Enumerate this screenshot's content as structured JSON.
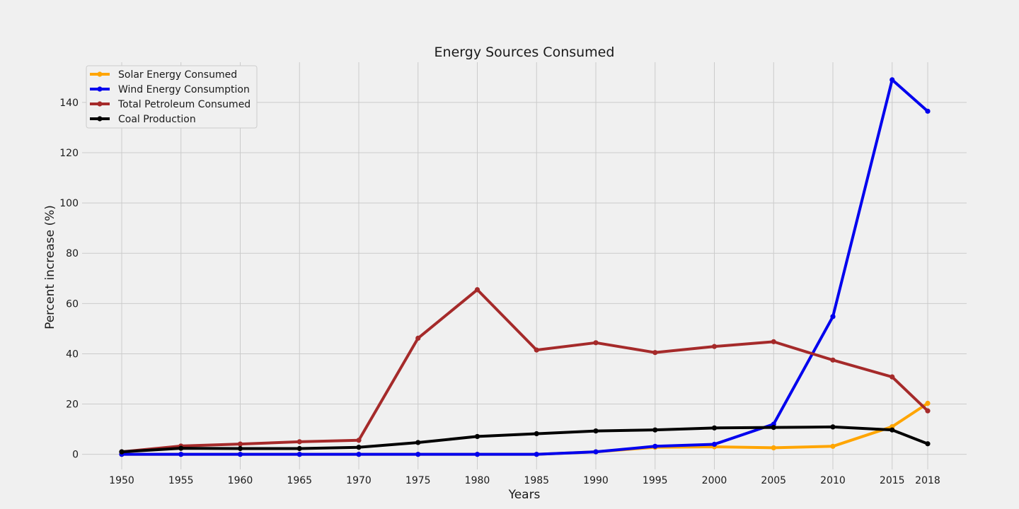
{
  "chart_data": {
    "type": "line",
    "title": "Energy Sources Consumed",
    "xlabel": "Years",
    "ylabel": "Percent increase (%)",
    "categories": [
      "1950",
      "1955",
      "1960",
      "1965",
      "1970",
      "1975",
      "1980",
      "1985",
      "1990",
      "1995",
      "2000",
      "2005",
      "2010",
      "2015",
      "2018"
    ],
    "y_ticks": [
      "0",
      "20",
      "40",
      "60",
      "80",
      "100",
      "120",
      "140"
    ],
    "ylim": [
      -6,
      156
    ],
    "grid": true,
    "legend_position": "top-left",
    "series": [
      {
        "name": "Solar Energy Consumed",
        "color": "#ffa500",
        "values": [
          0,
          0,
          0,
          0,
          0,
          0,
          0,
          0,
          1.0,
          2.8,
          3.0,
          2.6,
          3.2,
          11.0,
          20.3
        ]
      },
      {
        "name": "Wind Energy Consumption",
        "color": "#0000ee",
        "values": [
          0,
          0,
          0,
          0,
          0,
          0,
          0,
          0,
          1.0,
          3.2,
          4.0,
          12.0,
          54.8,
          149.0,
          136.5
        ]
      },
      {
        "name": "Total Petroleum Consumed",
        "color": "#a52a2a",
        "values": [
          1.0,
          3.3,
          4.1,
          5.0,
          5.6,
          46.2,
          65.5,
          41.5,
          44.4,
          40.5,
          42.9,
          44.8,
          37.5,
          30.8,
          17.3
        ]
      },
      {
        "name": "Coal Production",
        "color": "#000000",
        "values": [
          1.0,
          2.4,
          2.3,
          2.3,
          2.8,
          4.7,
          7.1,
          8.2,
          9.3,
          9.7,
          10.5,
          10.7,
          10.9,
          9.7,
          4.2
        ]
      }
    ]
  }
}
